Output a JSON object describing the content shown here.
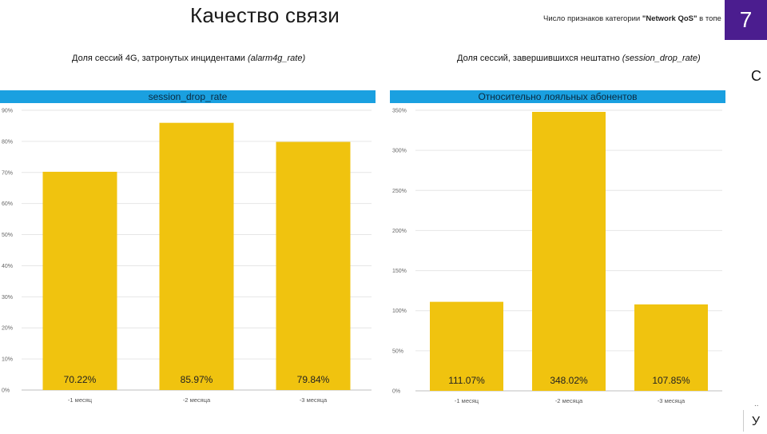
{
  "page": {
    "title": "Качество связи",
    "kpi_note_prefix": "Число признаков категории ",
    "kpi_note_bold": "\"Network QoS\"",
    "kpi_note_suffix": " в топе",
    "kpi_value": "7",
    "side_c": "С",
    "side_dots": "..",
    "side_y": "У"
  },
  "left": {
    "subtitle_main": "Доля сессий 4G, затронутых инцидентами ",
    "subtitle_italic": "(alarm4g_rate)",
    "header": "session_drop_rate"
  },
  "right": {
    "subtitle_main": "Доля сессий, завершившихся нештатно ",
    "subtitle_italic": "(session_drop_rate)",
    "header": "Относительно лояльных абонентов"
  },
  "chart_data": [
    {
      "type": "bar",
      "title": "session_drop_rate",
      "categories": [
        "-1 месяц",
        "-2 месяца",
        "-3 месяца"
      ],
      "values": [
        70.22,
        85.97,
        79.84
      ],
      "value_labels": [
        "70.22%",
        "85.97%",
        "79.84%"
      ],
      "ylim": [
        0,
        90
      ],
      "yticks": [
        0,
        10,
        20,
        30,
        40,
        50,
        60,
        70,
        80,
        90
      ],
      "ytick_labels": [
        "0%",
        "10%",
        "20%",
        "30%",
        "40%",
        "50%",
        "60%",
        "70%",
        "80%",
        "90%"
      ],
      "color": "#f0c30f",
      "grid": true
    },
    {
      "type": "bar",
      "title": "Относительно лояльных абонентов",
      "categories": [
        "-1 месяц",
        "-2 месяца",
        "-3 месяца"
      ],
      "values": [
        111.07,
        348.02,
        107.85
      ],
      "value_labels": [
        "111.07%",
        "348.02%",
        "107.85%"
      ],
      "ylim": [
        0,
        350
      ],
      "yticks": [
        0,
        50,
        100,
        150,
        200,
        250,
        300,
        350
      ],
      "ytick_labels": [
        "0%",
        "50%",
        "100%",
        "150%",
        "200%",
        "250%",
        "300%",
        "350%"
      ],
      "color": "#f0c30f",
      "grid": true
    }
  ]
}
